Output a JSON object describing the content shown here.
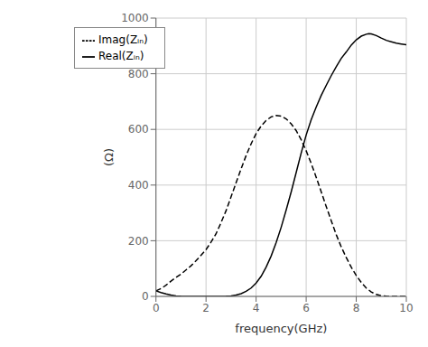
{
  "chart_data": {
    "type": "line",
    "xlabel": "frequency(GHz)",
    "ylabel": "(Ω)",
    "xlim": [
      0,
      10
    ],
    "ylim": [
      0,
      1000
    ],
    "xticks": [
      0,
      2,
      4,
      6,
      8,
      10
    ],
    "yticks": [
      0,
      200,
      400,
      600,
      800,
      1000
    ],
    "grid": true,
    "legend": "upper left",
    "series": [
      {
        "name": "Real(Zᵢₙ)",
        "color": "#000000",
        "line_style": "solid",
        "x": [
          0.0,
          0.2,
          0.4,
          0.6,
          0.8,
          1.0,
          1.2,
          1.4,
          1.6,
          1.8,
          2.0,
          2.2,
          2.4,
          2.5,
          2.6,
          2.8,
          3.0,
          3.2,
          3.4,
          3.6,
          3.8,
          4.0,
          4.2,
          4.4,
          4.6,
          4.8,
          5.0,
          5.2,
          5.4,
          5.6,
          5.8,
          6.0,
          6.2,
          6.4,
          6.6,
          6.8,
          7.0,
          7.2,
          7.4,
          7.6,
          7.8,
          8.0,
          8.2,
          8.4,
          8.5,
          8.6,
          8.8,
          9.0,
          9.2,
          9.4,
          9.6,
          9.8,
          10.0
        ],
        "values": [
          20,
          14,
          9,
          5,
          2,
          0.8,
          0.3,
          0.1,
          0.05,
          0.02,
          0.0,
          0.0,
          0.0,
          0.0,
          0.0,
          0.5,
          2,
          5,
          10,
          18,
          30,
          48,
          72,
          105,
          145,
          193,
          248,
          310,
          375,
          445,
          515,
          580,
          635,
          680,
          722,
          758,
          793,
          825,
          855,
          878,
          903,
          922,
          935,
          942,
          944,
          943,
          937,
          928,
          920,
          915,
          910,
          907,
          904
        ]
      },
      {
        "name": "Imag(Zᵢₙ)",
        "color": "#000000",
        "line_style": "dashed",
        "x": [
          0.0,
          0.2,
          0.4,
          0.6,
          0.8,
          1.0,
          1.2,
          1.4,
          1.6,
          1.8,
          2.0,
          2.2,
          2.4,
          2.6,
          2.8,
          3.0,
          3.2,
          3.4,
          3.6,
          3.8,
          4.0,
          4.2,
          4.4,
          4.6,
          4.8,
          5.0,
          5.2,
          5.4,
          5.6,
          5.8,
          6.0,
          6.2,
          6.4,
          6.6,
          6.8,
          7.0,
          7.2,
          7.4,
          7.6,
          7.8,
          8.0,
          8.2,
          8.4,
          8.6,
          8.8,
          9.0,
          9.2,
          9.4,
          9.6,
          9.8,
          10.0
        ],
        "values": [
          20,
          28,
          40,
          55,
          68,
          80,
          95,
          110,
          128,
          148,
          168,
          195,
          225,
          265,
          308,
          358,
          408,
          458,
          506,
          548,
          585,
          612,
          632,
          645,
          650,
          648,
          638,
          620,
          596,
          563,
          523,
          478,
          428,
          376,
          323,
          272,
          222,
          178,
          140,
          105,
          75,
          50,
          30,
          16,
          7,
          2,
          0.5,
          0.1,
          0.0,
          0.0,
          0.0
        ]
      }
    ]
  }
}
